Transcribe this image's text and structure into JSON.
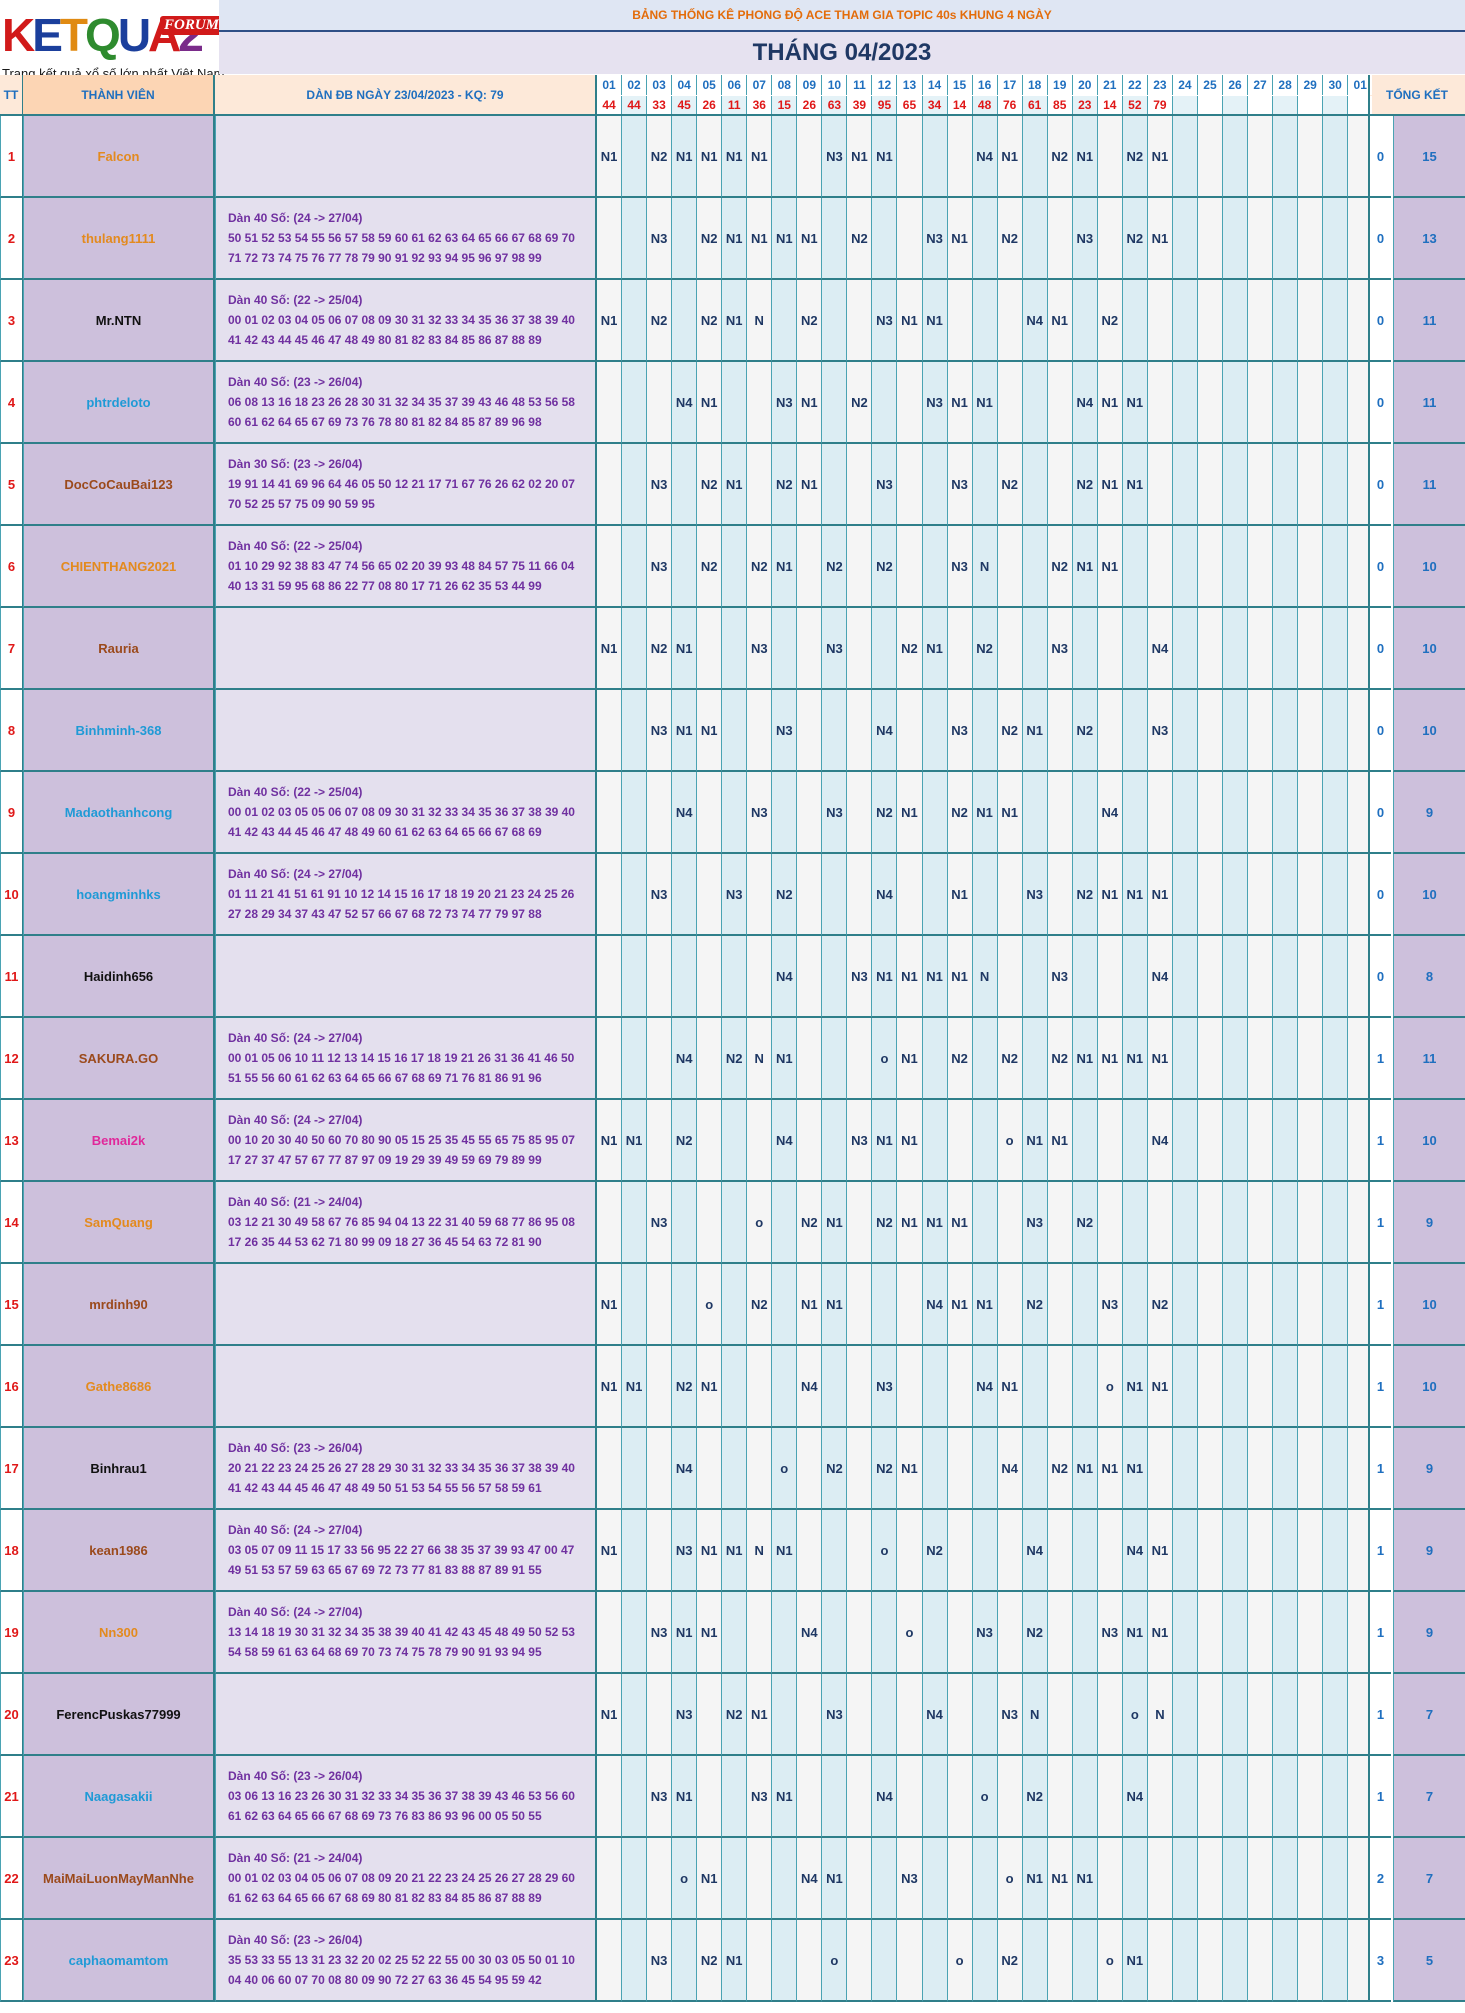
{
  "logo": {
    "text": "KETQUA2",
    "badge": "FORUM",
    "tagline": "Trang kết quả xổ số lớn nhất Việt Nam"
  },
  "title": "BẢNG THỐNG KÊ PHONG ĐỘ ACE THAM GIA TOPIC 40s KHUNG 4 NGÀY",
  "month": "THÁNG 04/2023",
  "headers": {
    "tt": "TT",
    "member": "THÀNH VIÊN",
    "dan": "DÀN ĐB NGÀY 23/04/2023 - KQ: 79",
    "total": "TỔNG KẾT"
  },
  "days": [
    "01",
    "02",
    "03",
    "04",
    "05",
    "06",
    "07",
    "08",
    "09",
    "10",
    "11",
    "12",
    "13",
    "14",
    "15",
    "16",
    "17",
    "18",
    "19",
    "20",
    "21",
    "22",
    "23",
    "24",
    "25",
    "26",
    "27",
    "28",
    "29",
    "30",
    "01"
  ],
  "results": [
    "44",
    "44",
    "33",
    "45",
    "26",
    "11",
    "36",
    "15",
    "26",
    "63",
    "39",
    "95",
    "65",
    "34",
    "14",
    "48",
    "76",
    "61",
    "85",
    "23",
    "14",
    "52",
    "79",
    "",
    "",
    "",
    "",
    "",
    "",
    "",
    ""
  ],
  "colors": {
    "orange": "#e38a1e",
    "black": "#111111",
    "blue": "#1f9ad6",
    "brown": "#9b4a1c",
    "magenta": "#e0289a"
  },
  "rows": [
    {
      "stt": "1",
      "name": "Falcon",
      "color": "orange",
      "dan1": "",
      "dan2": "",
      "dan3": "",
      "marks": {
        "0": "N1",
        "2": "N2",
        "3": "N1",
        "4": "N1",
        "5": "N1",
        "6": "N1",
        "9": "N3",
        "10": "N1",
        "11": "N1",
        "15": "N4",
        "16": "N1",
        "18": "N2",
        "19": "N1",
        "21": "N2",
        "22": "N1"
      },
      "a": "0",
      "b": "15"
    },
    {
      "stt": "2",
      "name": "thulang1111",
      "color": "orange",
      "dan1": "Dàn 40 Số: (24 -> 27/04)",
      "dan2": "50 51 52 53 54 55 56 57 58 59 60 61 62 63 64 65 66 67 68 69 70",
      "dan3": "71 72 73 74 75 76 77 78 79 90 91 92 93 94 95 96 97 98 99",
      "marks": {
        "2": "N3",
        "4": "N2",
        "5": "N1",
        "6": "N1",
        "7": "N1",
        "8": "N1",
        "10": "N2",
        "13": "N3",
        "14": "N1",
        "16": "N2",
        "19": "N3",
        "21": "N2",
        "22": "N1"
      },
      "a": "0",
      "b": "13"
    },
    {
      "stt": "3",
      "name": "Mr.NTN",
      "color": "black",
      "dan1": "Dàn 40 Số: (22 -> 25/04)",
      "dan2": "00 01 02 03 04 05 06 07 08 09 30 31 32 33 34 35 36 37 38 39 40",
      "dan3": "41 42 43 44 45 46 47 48 49 80 81 82 83 84 85 86 87 88 89",
      "marks": {
        "0": "N1",
        "2": "N2",
        "4": "N2",
        "5": "N1",
        "6": "N",
        "8": "N2",
        "11": "N3",
        "12": "N1",
        "13": "N1",
        "17": "N4",
        "18": "N1",
        "20": "N2"
      },
      "a": "0",
      "b": "11"
    },
    {
      "stt": "4",
      "name": "phtrdeloto",
      "color": "blue",
      "dan1": "Dàn 40 Số: (23 -> 26/04)",
      "dan2": "06 08 13 16 18 23 26 28 30 31 32 34 35 37 39 43 46 48 53 56 58",
      "dan3": "60 61 62 64 65 67 69 73 76 78 80 81 82 84 85 87 89 96 98",
      "marks": {
        "3": "N4",
        "4": "N1",
        "7": "N3",
        "8": "N1",
        "10": "N2",
        "13": "N3",
        "14": "N1",
        "15": "N1",
        "19": "N4",
        "20": "N1",
        "21": "N1"
      },
      "a": "0",
      "b": "11"
    },
    {
      "stt": "5",
      "name": "DocCoCauBai123",
      "color": "brown",
      "dan1": "Dàn 30 Số: (23 -> 26/04)",
      "dan2": "19 91 14 41 69 96 64 46 05 50 12 21 17 71 67 76 26 62 02 20 07",
      "dan3": "70 52 25 57 75 09 90 59 95",
      "marks": {
        "2": "N3",
        "4": "N2",
        "5": "N1",
        "7": "N2",
        "8": "N1",
        "11": "N3",
        "14": "N3",
        "16": "N2",
        "19": "N2",
        "20": "N1",
        "21": "N1"
      },
      "a": "0",
      "b": "11"
    },
    {
      "stt": "6",
      "name": "CHIENTHANG2021",
      "color": "orange",
      "dan1": "Dàn 40 Số: (22 -> 25/04)",
      "dan2": "01 10 29 92 38 83 47 74 56 65 02 20 39 93 48 84 57 75 11 66 04",
      "dan3": "40 13 31 59 95 68 86 22 77 08 80 17 71 26 62 35 53 44 99",
      "marks": {
        "2": "N3",
        "4": "N2",
        "6": "N2",
        "7": "N1",
        "9": "N2",
        "11": "N2",
        "14": "N3",
        "15": "N",
        "18": "N2",
        "19": "N1",
        "20": "N1"
      },
      "a": "0",
      "b": "10"
    },
    {
      "stt": "7",
      "name": "Rauria",
      "color": "brown",
      "dan1": "",
      "dan2": "",
      "dan3": "",
      "marks": {
        "0": "N1",
        "2": "N2",
        "3": "N1",
        "6": "N3",
        "9": "N3",
        "12": "N2",
        "13": "N1",
        "15": "N2",
        "18": "N3",
        "22": "N4"
      },
      "a": "0",
      "b": "10"
    },
    {
      "stt": "8",
      "name": "Binhminh-368",
      "color": "blue",
      "dan1": "",
      "dan2": "",
      "dan3": "",
      "marks": {
        "2": "N3",
        "3": "N1",
        "4": "N1",
        "7": "N3",
        "11": "N4",
        "14": "N3",
        "16": "N2",
        "17": "N1",
        "19": "N2",
        "22": "N3"
      },
      "a": "0",
      "b": "10"
    },
    {
      "stt": "9",
      "name": "Madaothanhcong",
      "color": "blue",
      "dan1": "Dàn 40 Số: (22 -> 25/04)",
      "dan2": "00 01 02 03 05 05 06 07 08 09 30 31 32 33 34 35 36 37 38 39 40",
      "dan3": "41 42 43 44 45 46 47 48 49 60 61 62 63 64 65 66 67 68 69",
      "marks": {
        "3": "N4",
        "6": "N3",
        "9": "N3",
        "11": "N2",
        "12": "N1",
        "14": "N2",
        "15": "N1",
        "16": "N1",
        "20": "N4"
      },
      "a": "0",
      "b": "9"
    },
    {
      "stt": "10",
      "name": "hoangminhks",
      "color": "blue",
      "dan1": "Dàn 40 Số: (24 -> 27/04)",
      "dan2": "01 11 21 41 51 61 91 10 12 14 15 16 17 18 19 20 21 23 24 25 26",
      "dan3": "27 28 29 34 37 43 47 52 57 66 67 68 72 73 74 77 79 97 88",
      "marks": {
        "2": "N3",
        "5": "N3",
        "7": "N2",
        "11": "N4",
        "14": "N1",
        "17": "N3",
        "19": "N2",
        "20": "N1",
        "21": "N1",
        "22": "N1"
      },
      "a": "0",
      "b": "10"
    },
    {
      "stt": "11",
      "name": "Haidinh656",
      "color": "black",
      "dan1": "",
      "dan2": "",
      "dan3": "",
      "marks": {
        "7": "N4",
        "10": "N3",
        "11": "N1",
        "12": "N1",
        "13": "N1",
        "14": "N1",
        "15": "N",
        "18": "N3",
        "22": "N4"
      },
      "a": "0",
      "b": "8"
    },
    {
      "stt": "12",
      "name": "SAKURA.GO",
      "color": "brown",
      "dan1": "Dàn 40 Số: (24 -> 27/04)",
      "dan2": "00 01 05 06 10 11 12 13 14 15 16 17 18 19 21 26 31 36 41 46 50",
      "dan3": "51 55 56 60 61 62 63 64 65 66 67 68 69 71 76 81 86 91 96",
      "marks": {
        "3": "N4",
        "5": "N2",
        "6": "N",
        "7": "N1",
        "11": "o",
        "12": "N1",
        "14": "N2",
        "16": "N2",
        "18": "N2",
        "19": "N1",
        "20": "N1",
        "21": "N1",
        "22": "N1"
      },
      "a": "1",
      "b": "11"
    },
    {
      "stt": "13",
      "name": "Bemai2k",
      "color": "magenta",
      "dan1": "Dàn 40 Số: (24 -> 27/04)",
      "dan2": "00 10 20 30 40 50 60 70 80 90 05 15 25 35 45 55 65 75 85 95 07",
      "dan3": "17 27 37 47 57 67 77 87 97 09 19 29 39 49 59 69 79 89 99",
      "marks": {
        "0": "N1",
        "1": "N1",
        "3": "N2",
        "7": "N4",
        "10": "N3",
        "11": "N1",
        "12": "N1",
        "16": "o",
        "17": "N1",
        "18": "N1",
        "22": "N4"
      },
      "a": "1",
      "b": "10"
    },
    {
      "stt": "14",
      "name": "SamQuang",
      "color": "orange",
      "dan1": "Dàn 40 Số: (21 -> 24/04)",
      "dan2": "03 12 21 30 49 58 67 76 85 94 04 13 22 31 40 59 68 77 86 95 08",
      "dan3": "17 26 35 44 53 62 71 80 99 09 18 27 36 45 54 63 72 81 90",
      "marks": {
        "2": "N3",
        "6": "o",
        "8": "N2",
        "9": "N1",
        "11": "N2",
        "12": "N1",
        "13": "N1",
        "14": "N1",
        "17": "N3",
        "19": "N2"
      },
      "a": "1",
      "b": "9"
    },
    {
      "stt": "15",
      "name": "mrdinh90",
      "color": "brown",
      "dan1": "",
      "dan2": "",
      "dan3": "",
      "marks": {
        "0": "N1",
        "4": "o",
        "6": "N2",
        "8": "N1",
        "9": "N1",
        "13": "N4",
        "14": "N1",
        "15": "N1",
        "17": "N2",
        "20": "N3",
        "22": "N2"
      },
      "a": "1",
      "b": "10"
    },
    {
      "stt": "16",
      "name": "Gathe8686",
      "color": "orange",
      "dan1": "",
      "dan2": "",
      "dan3": "",
      "marks": {
        "0": "N1",
        "1": "N1",
        "3": "N2",
        "4": "N1",
        "8": "N4",
        "11": "N3",
        "15": "N4",
        "16": "N1",
        "20": "o",
        "21": "N1",
        "22": "N1"
      },
      "a": "1",
      "b": "10"
    },
    {
      "stt": "17",
      "name": "Binhrau1",
      "color": "black",
      "dan1": "Dàn 40 Số: (23 -> 26/04)",
      "dan2": "20 21 22 23 24 25 26 27 28 29 30 31 32 33 34 35 36 37 38 39 40",
      "dan3": "41 42 43 44 45 46 47 48 49 50 51 53 54 55 56 57 58 59 61",
      "marks": {
        "3": "N4",
        "7": "o",
        "9": "N2",
        "11": "N2",
        "12": "N1",
        "16": "N4",
        "18": "N2",
        "19": "N1",
        "20": "N1",
        "21": "N1"
      },
      "a": "1",
      "b": "9"
    },
    {
      "stt": "18",
      "name": "kean1986",
      "color": "brown",
      "dan1": "Dàn 40 Số: (24 -> 27/04)",
      "dan2": "03 05 07 09 11 15 17 33 56 95 22 27 66 38 35 37 39 93 47 00 47",
      "dan3": "49 51 53 57 59 63 65 67 69 72 73 77 81 83 88 87 89 91 55",
      "marks": {
        "0": "N1",
        "3": "N3",
        "4": "N1",
        "5": "N1",
        "6": "N",
        "7": "N1",
        "11": "o",
        "13": "N2",
        "17": "N4",
        "21": "N4",
        "22": "N1"
      },
      "a": "1",
      "b": "9"
    },
    {
      "stt": "19",
      "name": "Nn300",
      "color": "orange",
      "dan1": "Dàn 40 Số: (24 -> 27/04)",
      "dan2": "13 14 18 19 30 31 32 34 35 38 39 40 41 42 43 45 48 49 50 52 53",
      "dan3": "54 58 59 61 63 64 68 69 70 73 74 75 78 79 90 91 93 94 95",
      "marks": {
        "2": "N3",
        "3": "N1",
        "4": "N1",
        "8": "N4",
        "12": "o",
        "15": "N3",
        "17": "N2",
        "20": "N3",
        "21": "N1",
        "22": "N1"
      },
      "a": "1",
      "b": "9"
    },
    {
      "stt": "20",
      "name": "FerencPuskas77999",
      "color": "black",
      "dan1": "",
      "dan2": "",
      "dan3": "",
      "marks": {
        "0": "N1",
        "3": "N3",
        "5": "N2",
        "6": "N1",
        "9": "N3",
        "13": "N4",
        "16": "N3",
        "17": "N",
        "21": "o",
        "22": "N"
      },
      "a": "1",
      "b": "7"
    },
    {
      "stt": "21",
      "name": "Naagasakii",
      "color": "blue",
      "dan1": "Dàn 40 Số: (23 -> 26/04)",
      "dan2": "03 06 13 16 23 26 30 31 32 33 34 35 36 37 38 39 43 46 53 56 60",
      "dan3": "61 62 63 64 65 66 67 68 69 73 76 83 86 93 96 00 05 50 55",
      "marks": {
        "2": "N3",
        "3": "N1",
        "6": "N3",
        "7": "N1",
        "11": "N4",
        "15": "o",
        "17": "N2",
        "21": "N4"
      },
      "a": "1",
      "b": "7"
    },
    {
      "stt": "22",
      "name": "MaiMaiLuonMayManNhe",
      "color": "brown",
      "dan1": "Dàn 40 Số: (21 -> 24/04)",
      "dan2": "00 01 02 03 04 05 06 07 08 09 20 21 22 23 24 25 26 27 28 29 60",
      "dan3": "61 62 63 64 65 66 67 68 69 80 81 82 83 84 85 86 87 88 89",
      "marks": {
        "3": "o",
        "4": "N1",
        "8": "N4",
        "9": "N1",
        "12": "N3",
        "16": "o",
        "17": "N1",
        "18": "N1",
        "19": "N1"
      },
      "a": "2",
      "b": "7"
    },
    {
      "stt": "23",
      "name": "caphaomamtom",
      "color": "blue",
      "dan1": "Dàn 40 Số: (23 -> 26/04)",
      "dan2": "35 53 33 55 13 31 23 32 20 02 25 52 22 55 00 30 03 05 50 01 10",
      "dan3": "04 40 06 60 07 70 08 80 09 90 72 27 63 36 45 54 95 59 42",
      "marks": {
        "2": "N3",
        "4": "N2",
        "5": "N1",
        "9": "o",
        "14": "o",
        "16": "N2",
        "20": "o",
        "21": "N1"
      },
      "a": "3",
      "b": "5"
    }
  ]
}
